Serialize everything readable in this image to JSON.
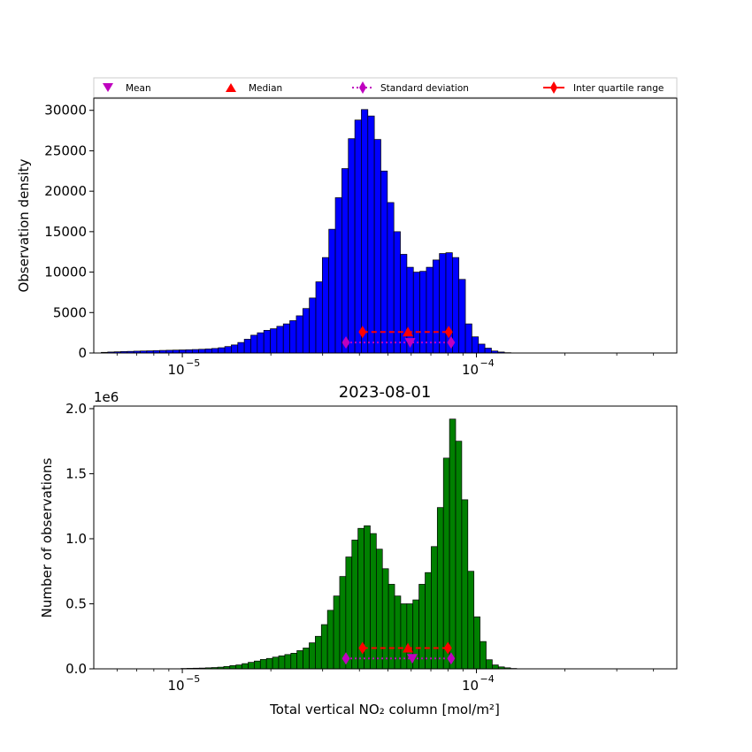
{
  "legend": {
    "mean": "Mean",
    "median": "Median",
    "std": "Standard deviation",
    "iqr": "Inter quartile range"
  },
  "colors": {
    "top_bars": "#0000ff",
    "bottom_bars": "#008000",
    "mean_marker": "#bf00bf",
    "median_marker": "#ff0000",
    "std_marker": "#bf00bf",
    "iqr_marker": "#ff0000",
    "bar_edge": "#000000"
  },
  "chart_data": [
    {
      "type": "bar",
      "ylabel": "Observation density",
      "xscale": "log",
      "xlim": [
        5e-06,
        0.00048
      ],
      "ylim": [
        0,
        31500
      ],
      "yticks": [
        0,
        5000,
        10000,
        15000,
        20000,
        25000,
        30000
      ],
      "ytick_labels": [
        "0",
        "5000",
        "10000",
        "15000",
        "20000",
        "25000",
        "30000"
      ],
      "xticks": [
        1e-05,
        0.0001
      ],
      "bin_edges_x": [
        5.3e-06,
        0.000131
      ],
      "values": [
        80,
        120,
        150,
        180,
        200,
        230,
        250,
        270,
        300,
        320,
        340,
        360,
        380,
        400,
        430,
        460,
        500,
        560,
        650,
        800,
        1000,
        1300,
        1700,
        2200,
        2500,
        2800,
        3000,
        3300,
        3600,
        4000,
        4600,
        5500,
        6800,
        8800,
        11800,
        15300,
        19200,
        22800,
        26500,
        28800,
        30100,
        29300,
        26400,
        22500,
        18600,
        15000,
        12200,
        10600,
        10000,
        10100,
        10600,
        11500,
        12300,
        12400,
        11800,
        9100,
        3600,
        2000,
        1100,
        600,
        250,
        120,
        40
      ],
      "stats": {
        "mean": 5.95e-05,
        "median": 5.85e-05,
        "std_low": 3.6e-05,
        "std_high": 8.2e-05,
        "iqr_low": 4.1e-05,
        "iqr_high": 8.05e-05,
        "iqr_y": 2600,
        "std_y": 1300
      },
      "xtick_labels_shown": false
    },
    {
      "type": "bar",
      "title": "2023-08-01",
      "xlabel": "Total vertical NO₂ column [mol/m²]",
      "ylabel": "Number of observations",
      "offset_label": "1e6",
      "xscale": "log",
      "xlim": [
        5e-06,
        0.00048
      ],
      "ylim": [
        0,
        2.02
      ],
      "yticks": [
        0.0,
        0.5,
        1.0,
        1.5,
        2.0
      ],
      "ytick_labels": [
        "0.0",
        "0.5",
        "1.0",
        "1.5",
        "2.0"
      ],
      "xticks": [
        1e-05,
        0.0001
      ],
      "xtick_labels_top": [
        "10",
        "10"
      ],
      "xtick_exponents": [
        "−5",
        "−4"
      ],
      "bin_edges_x": [
        9.9e-06,
        0.000137
      ],
      "values": [
        0.003,
        0.004,
        0.005,
        0.006,
        0.008,
        0.01,
        0.013,
        0.018,
        0.025,
        0.03,
        0.04,
        0.05,
        0.06,
        0.072,
        0.08,
        0.09,
        0.1,
        0.11,
        0.12,
        0.14,
        0.16,
        0.2,
        0.25,
        0.34,
        0.45,
        0.56,
        0.71,
        0.86,
        0.99,
        1.08,
        1.1,
        1.04,
        0.92,
        0.77,
        0.65,
        0.56,
        0.5,
        0.5,
        0.53,
        0.65,
        0.74,
        0.94,
        1.24,
        1.62,
        1.92,
        1.75,
        1.3,
        0.75,
        0.4,
        0.21,
        0.07,
        0.03,
        0.015,
        0.008,
        0.003
      ],
      "stats": {
        "mean": 6.05e-05,
        "median": 5.85e-05,
        "std_low": 3.6e-05,
        "std_high": 8.2e-05,
        "iqr_low": 4.1e-05,
        "iqr_high": 8e-05,
        "iqr_y": 0.16,
        "std_y": 0.08
      }
    }
  ]
}
